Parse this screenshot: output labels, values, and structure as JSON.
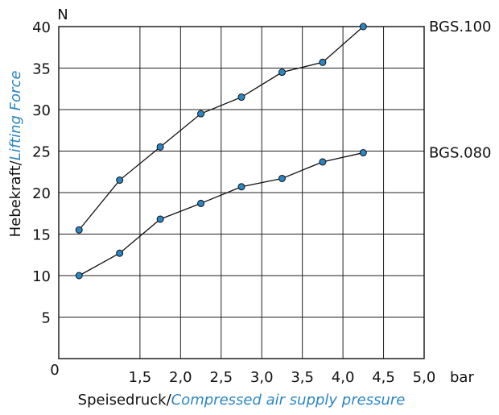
{
  "chart_data": {
    "type": "line",
    "title": "",
    "xlabel": {
      "de": "Speisedruck/",
      "en": "Compressed air supply pressure"
    },
    "ylabel": {
      "de": "Hebekraft/",
      "en": "Lifting Force"
    },
    "y_unit": "N",
    "x_unit": "bar",
    "origin_label": "0",
    "xlim": [
      0.5,
      5.0
    ],
    "ylim": [
      0,
      40
    ],
    "x_ticks": [
      1.5,
      2.0,
      2.5,
      3.0,
      3.5,
      4.0,
      4.5,
      5.0
    ],
    "x_tick_labels": [
      "1,5",
      "2,0",
      "2,5",
      "3,0",
      "3,5",
      "4,0",
      "4,5",
      "5,0"
    ],
    "y_ticks": [
      5,
      10,
      15,
      20,
      25,
      30,
      35,
      40
    ],
    "y_tick_labels": [
      "5",
      "10",
      "15",
      "20",
      "25",
      "30",
      "35",
      "40"
    ],
    "grid": true,
    "accent_color": "#2b86c5",
    "series": [
      {
        "name": "BGS.100",
        "x": [
          0.75,
          1.25,
          1.75,
          2.25,
          2.75,
          3.25,
          3.75,
          4.25
        ],
        "y": [
          15.5,
          21.5,
          25.5,
          29.5,
          31.5,
          34.5,
          35.7,
          40
        ]
      },
      {
        "name": "BGS.080",
        "x": [
          0.75,
          1.25,
          1.75,
          2.25,
          2.75,
          3.25,
          3.75,
          4.25
        ],
        "y": [
          10,
          12.7,
          16.8,
          18.7,
          20.7,
          21.7,
          23.7,
          24.8
        ]
      }
    ]
  }
}
